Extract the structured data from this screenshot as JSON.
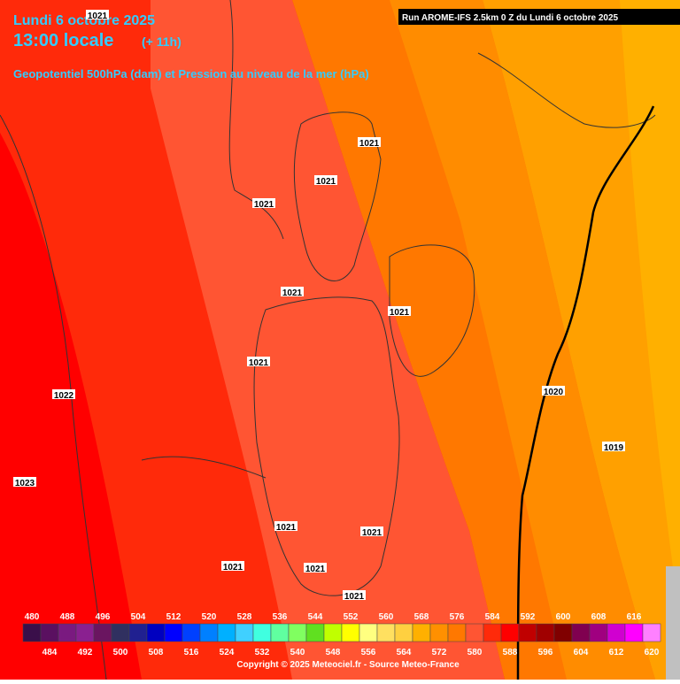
{
  "header": {
    "date": "Lundi 6 octobre 2025",
    "time": "13:00 locale",
    "lead": "(+ 11h)",
    "subtitle": "Geopotentiel 500hPa (dam) et Pression au niveau de la mer (hPa)",
    "run": "Run AROME-IFS 2.5km 0 Z du Lundi 6 octobre 2025"
  },
  "isobar_labels": [
    1021,
    1021,
    1021,
    1021,
    1021,
    1021,
    1021,
    1022,
    1020,
    1019,
    1023,
    1021,
    1021,
    1021,
    1021,
    1021
  ],
  "colorbar": {
    "ticks": [
      480,
      484,
      488,
      492,
      496,
      500,
      504,
      508,
      512,
      516,
      520,
      524,
      528,
      532,
      536,
      540,
      544,
      548,
      552,
      556,
      560,
      564,
      568,
      572,
      576,
      580,
      584,
      588,
      592,
      596,
      600,
      604,
      608,
      612,
      616,
      620
    ],
    "colors": [
      "#3a0f4a",
      "#5a1060",
      "#7a1a80",
      "#8a2090",
      "#6a1560",
      "#303060",
      "#202090",
      "#0000c0",
      "#0000ff",
      "#0040ff",
      "#0080ff",
      "#00b0ff",
      "#40d0ff",
      "#40ffe0",
      "#60ffa0",
      "#80ff60",
      "#60e020",
      "#c0ff00",
      "#ffff00",
      "#ffff80",
      "#ffe060",
      "#ffd040",
      "#ffb000",
      "#ff9000",
      "#ff7800",
      "#ff5533",
      "#ff2a0a",
      "#ff0000",
      "#c00000",
      "#a00000",
      "#800000",
      "#800050",
      "#a00080",
      "#d000d0",
      "#ff00ff",
      "#ff80ff"
    ]
  },
  "footer": {
    "copyright": "Copyright © 2025 Meteociel.fr - Source Meteo-France"
  }
}
